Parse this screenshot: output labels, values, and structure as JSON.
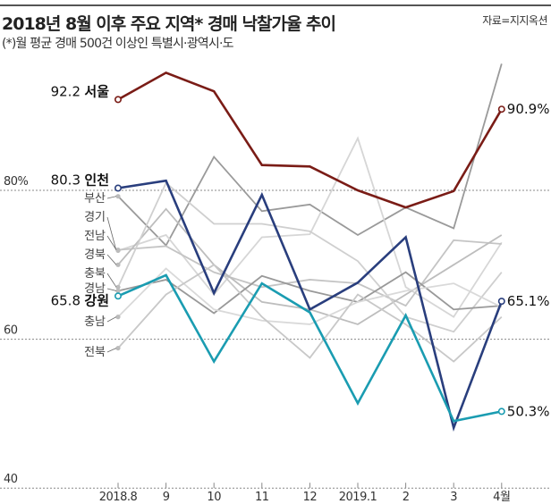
{
  "header": {
    "title": "2018년 8월 이후 주요 지역* 경매 낙찰가율 추이",
    "subtitle": "(*)월 평균 경매 500건 이상인 특별시·광역시·도",
    "source": "자료=지지옥션"
  },
  "chart_data": {
    "type": "line",
    "title": "2018년 8월 이후 주요 지역* 경매 낙찰가율 추이",
    "categories": [
      "2018.8",
      "9",
      "10",
      "11",
      "12",
      "2019.1",
      "2",
      "3",
      "4월"
    ],
    "ylim": [
      40,
      100
    ],
    "yticks": [
      {
        "value": 80,
        "label": "80%"
      },
      {
        "value": 60,
        "label": "60"
      },
      {
        "value": 40,
        "label": "40"
      }
    ],
    "grid": "dotted lines at 80, 60, 40",
    "series": [
      {
        "name": "부산",
        "color": "#9a9a9a",
        "values": [
          79.2,
          72.6,
          84.5,
          77.2,
          78.1,
          74.0,
          77.7,
          74.9,
          97.0
        ]
      },
      {
        "name": "경기",
        "color": "#d6d6d6",
        "values": [
          71.9,
          74.0,
          66.0,
          73.7,
          74.1,
          87.0,
          67.0,
          63.0,
          73.0
        ]
      },
      {
        "name": "전남",
        "color": "#c4c4c4",
        "values": [
          72.0,
          72.5,
          69.0,
          67.0,
          68.0,
          67.5,
          64.5,
          73.3,
          72.8
        ]
      },
      {
        "name": "경북",
        "color": "#bdbdbd",
        "values": [
          70.0,
          77.5,
          70.0,
          65.0,
          64.0,
          62.0,
          66.0,
          70.0,
          74.0
        ]
      },
      {
        "name": "충북",
        "color": "#cfcfcf",
        "values": [
          67.0,
          81.0,
          75.5,
          75.5,
          74.5,
          70.5,
          63.0,
          61.0,
          69.0
        ]
      },
      {
        "name": "경남",
        "color": "#999999",
        "values": [
          66.5,
          68.0,
          63.5,
          68.5,
          66.5,
          65.0,
          69.0,
          64.0,
          64.5
        ]
      },
      {
        "name": "충남",
        "color": "#d9d9d9",
        "values": [
          63.0,
          69.5,
          64.0,
          62.5,
          62.0,
          65.0,
          66.5,
          67.5,
          64.3
        ]
      },
      {
        "name": "전북",
        "color": "#c8c8c8",
        "values": [
          58.8,
          66.0,
          70.0,
          63.0,
          57.5,
          66.0,
          62.0,
          57.0,
          63.0
        ]
      },
      {
        "name": "서울",
        "color": "#7a1c16",
        "highlight": true,
        "start_label": "92.2",
        "end_label": "90.9%",
        "values": [
          92.2,
          95.8,
          93.3,
          83.4,
          83.2,
          80.0,
          77.7,
          79.9,
          90.9
        ]
      },
      {
        "name": "인천",
        "color": "#293e7d",
        "highlight": true,
        "start_label": "80.3",
        "end_label": "65.1%",
        "values": [
          80.3,
          81.3,
          66.2,
          79.4,
          64.0,
          67.6,
          73.7,
          48.1,
          65.1
        ]
      },
      {
        "name": "강원",
        "color": "#1a9cb1",
        "highlight": true,
        "start_label": "65.8",
        "end_label": "50.3%",
        "values": [
          65.8,
          68.6,
          57.0,
          67.5,
          63.6,
          51.4,
          63.2,
          49.0,
          50.3
        ]
      }
    ]
  }
}
